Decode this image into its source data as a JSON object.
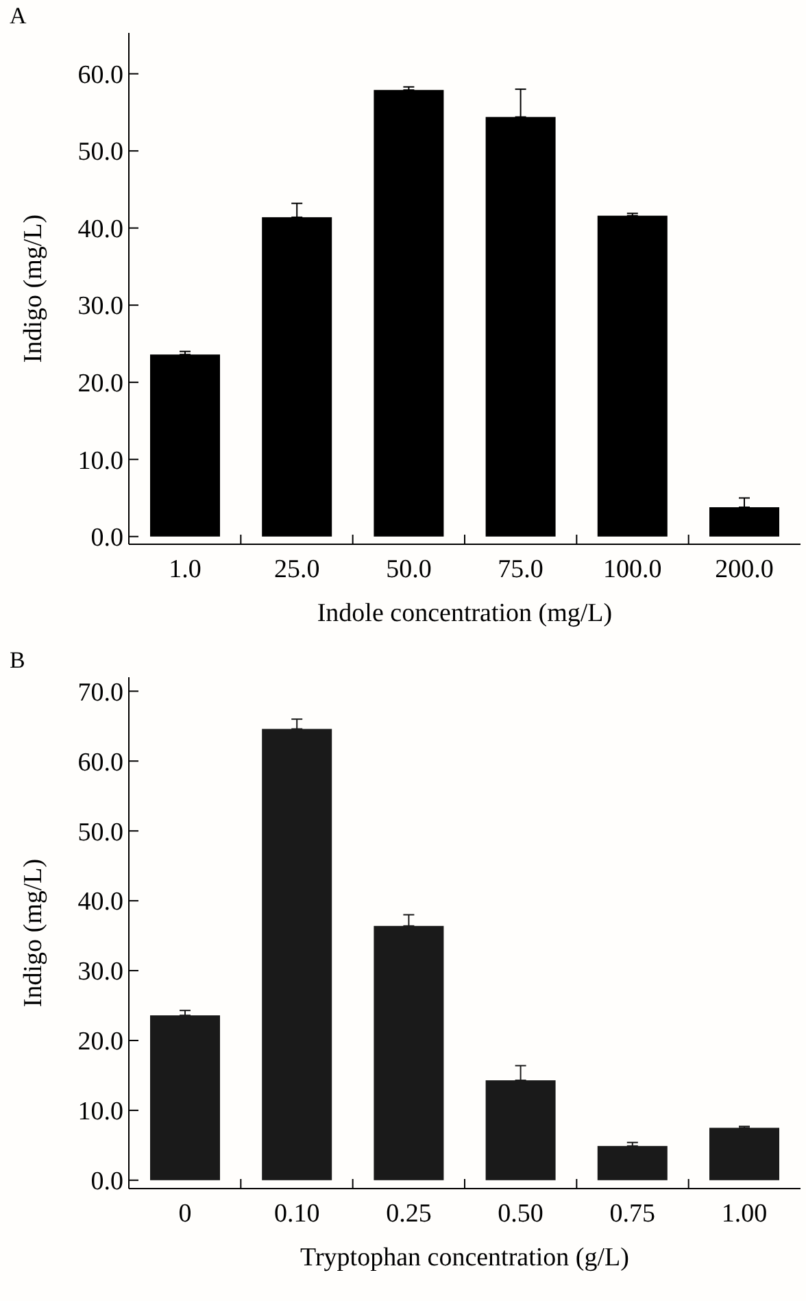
{
  "chart_data": [
    {
      "type": "bar",
      "title": "A",
      "xlabel": "Indole concentration (mg/L)",
      "ylabel": "Indigo (mg/L)",
      "categories": [
        "1.0",
        "25.0",
        "50.0",
        "75.0",
        "100.0",
        "200.0"
      ],
      "values": [
        23.6,
        41.4,
        57.9,
        54.4,
        41.6,
        3.8
      ],
      "errors": [
        [
          23.6,
          24.0
        ],
        [
          41.4,
          43.2
        ],
        [
          57.9,
          58.3
        ],
        [
          54.4,
          58.0
        ],
        [
          41.6,
          41.9
        ],
        [
          3.8,
          5.0
        ]
      ],
      "color": "#000000",
      "ylim": [
        -1.0,
        65.3
      ],
      "yticks": [
        {
          "value": 0,
          "label": "0.0"
        },
        {
          "value": 10,
          "label": "10.0"
        },
        {
          "value": 20,
          "label": "20.0"
        },
        {
          "value": 30,
          "label": "30.0"
        },
        {
          "value": 40,
          "label": "40.0"
        },
        {
          "value": 50,
          "label": "50.0"
        },
        {
          "value": 60,
          "label": "60.0"
        }
      ]
    },
    {
      "type": "bar",
      "title": "B",
      "xlabel": "Tryptophan concentration (g/L)",
      "ylabel": "Indigo (mg/L)",
      "categories": [
        "0",
        "0.10",
        "0.25",
        "0.50",
        "0.75",
        "1.00"
      ],
      "values": [
        23.6,
        64.6,
        36.4,
        14.3,
        4.9,
        7.5
      ],
      "errors": [
        [
          23.6,
          24.3
        ],
        [
          64.6,
          66.0
        ],
        [
          36.4,
          38.0
        ],
        [
          14.3,
          16.4
        ],
        [
          4.9,
          5.4
        ],
        [
          7.5,
          7.7
        ]
      ],
      "color": "#1a1a1a",
      "ylim": [
        -1.2,
        72.0
      ],
      "yticks": [
        {
          "value": 0,
          "label": "0.0"
        },
        {
          "value": 10,
          "label": "10.0"
        },
        {
          "value": 20,
          "label": "20.0"
        },
        {
          "value": 30,
          "label": "30.0"
        },
        {
          "value": 40,
          "label": "40.0"
        },
        {
          "value": 50,
          "label": "50.0"
        },
        {
          "value": 60,
          "label": "60.0"
        },
        {
          "value": 70,
          "label": "70.0"
        }
      ]
    }
  ]
}
